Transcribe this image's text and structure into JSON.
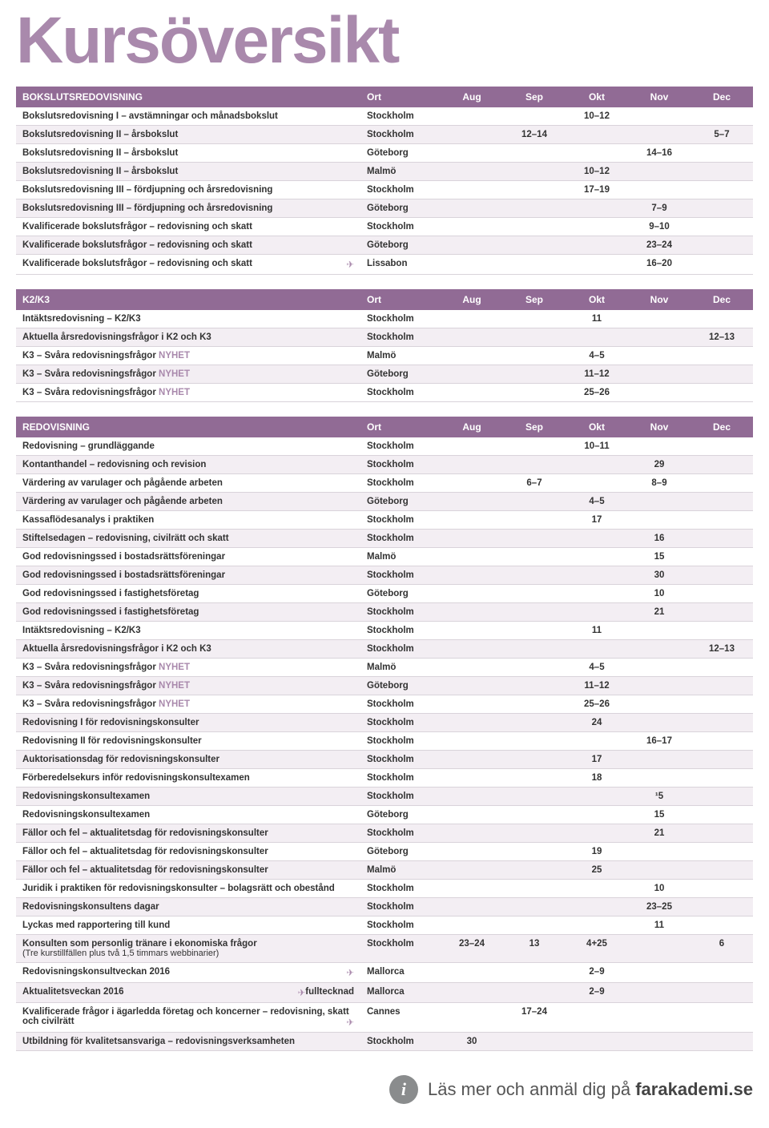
{
  "title": "Kursöversikt",
  "plane_glyph": "✈",
  "nyhet_label": "NYHET",
  "columns": [
    "Ort",
    "Aug",
    "Sep",
    "Okt",
    "Nov",
    "Dec"
  ],
  "sections": [
    {
      "header": "BOKSLUTSREDOVISNING",
      "rows": [
        {
          "name": "Bokslutsredovisning I – avstämningar och månadsbokslut",
          "ort": "Stockholm",
          "aug": "",
          "sep": "",
          "okt": "10–12",
          "nov": "",
          "dec": ""
        },
        {
          "name": "Bokslutsredovisning II – årsbokslut",
          "ort": "Stockholm",
          "aug": "",
          "sep": "12–14",
          "okt": "",
          "nov": "",
          "dec": "5–7"
        },
        {
          "name": "Bokslutsredovisning II – årsbokslut",
          "ort": "Göteborg",
          "aug": "",
          "sep": "",
          "okt": "",
          "nov": "14–16",
          "dec": ""
        },
        {
          "name": "Bokslutsredovisning II – årsbokslut",
          "ort": "Malmö",
          "aug": "",
          "sep": "",
          "okt": "10–12",
          "nov": "",
          "dec": ""
        },
        {
          "name": "Bokslutsredovisning III – fördjupning och årsredovisning",
          "ort": "Stockholm",
          "aug": "",
          "sep": "",
          "okt": "17–19",
          "nov": "",
          "dec": ""
        },
        {
          "name": "Bokslutsredovisning III – fördjupning och årsredovisning",
          "ort": "Göteborg",
          "aug": "",
          "sep": "",
          "okt": "",
          "nov": "7–9",
          "dec": ""
        },
        {
          "name": "Kvalificerade bokslutsfrågor – redovisning och skatt",
          "ort": "Stockholm",
          "aug": "",
          "sep": "",
          "okt": "",
          "nov": "9–10",
          "dec": ""
        },
        {
          "name": "Kvalificerade bokslutsfrågor – redovisning och skatt",
          "ort": "Göteborg",
          "aug": "",
          "sep": "",
          "okt": "",
          "nov": "23–24",
          "dec": ""
        },
        {
          "name": "Kvalificerade bokslutsfrågor – redovisning och skatt",
          "plane": true,
          "ort": "Lissabon",
          "aug": "",
          "sep": "",
          "okt": "",
          "nov": "16–20",
          "dec": ""
        }
      ]
    },
    {
      "header": "K2/K3",
      "rows": [
        {
          "name": "Intäktsredovisning – K2/K3",
          "ort": "Stockholm",
          "aug": "",
          "sep": "",
          "okt": "11",
          "nov": "",
          "dec": ""
        },
        {
          "name": "Aktuella årsredovisningsfrågor i K2 och K3",
          "ort": "Stockholm",
          "aug": "",
          "sep": "",
          "okt": "",
          "nov": "",
          "dec": "12–13"
        },
        {
          "name": "K3 – Svåra redovisningsfrågor",
          "nyhet": true,
          "ort": "Malmö",
          "aug": "",
          "sep": "",
          "okt": "4–5",
          "nov": "",
          "dec": ""
        },
        {
          "name": "K3 – Svåra redovisningsfrågor",
          "nyhet": true,
          "ort": "Göteborg",
          "aug": "",
          "sep": "",
          "okt": "11–12",
          "nov": "",
          "dec": ""
        },
        {
          "name": "K3 – Svåra redovisningsfrågor",
          "nyhet": true,
          "ort": "Stockholm",
          "aug": "",
          "sep": "",
          "okt": "25–26",
          "nov": "",
          "dec": ""
        }
      ]
    },
    {
      "header": "REDOVISNING",
      "rows": [
        {
          "name": "Redovisning – grundläggande",
          "ort": "Stockholm",
          "aug": "",
          "sep": "",
          "okt": "10–11",
          "nov": "",
          "dec": ""
        },
        {
          "name": "Kontanthandel – redovisning och revision",
          "ort": "Stockholm",
          "aug": "",
          "sep": "",
          "okt": "",
          "nov": "29",
          "dec": ""
        },
        {
          "name": "Värdering av varulager och pågående arbeten",
          "ort": "Stockholm",
          "aug": "",
          "sep": "6–7",
          "okt": "",
          "nov": "8–9",
          "dec": ""
        },
        {
          "name": "Värdering av varulager och pågående arbeten",
          "ort": "Göteborg",
          "aug": "",
          "sep": "",
          "okt": "4–5",
          "nov": "",
          "dec": ""
        },
        {
          "name": "Kassaflödesanalys i praktiken",
          "ort": "Stockholm",
          "aug": "",
          "sep": "",
          "okt": "17",
          "nov": "",
          "dec": ""
        },
        {
          "name": "Stiftelsedagen – redovisning, civilrätt och skatt",
          "ort": "Stockholm",
          "aug": "",
          "sep": "",
          "okt": "",
          "nov": "16",
          "dec": ""
        },
        {
          "name": "God redovisningssed i bostadsrättsföreningar",
          "ort": "Malmö",
          "aug": "",
          "sep": "",
          "okt": "",
          "nov": "15",
          "dec": ""
        },
        {
          "name": "God redovisningssed i bostadsrättsföreningar",
          "ort": "Stockholm",
          "aug": "",
          "sep": "",
          "okt": "",
          "nov": "30",
          "dec": ""
        },
        {
          "name": "God redovisningssed i fastighetsföretag",
          "ort": "Göteborg",
          "aug": "",
          "sep": "",
          "okt": "",
          "nov": "10",
          "dec": ""
        },
        {
          "name": "God redovisningssed i fastighetsföretag",
          "ort": "Stockholm",
          "aug": "",
          "sep": "",
          "okt": "",
          "nov": "21",
          "dec": ""
        },
        {
          "name": "Intäktsredovisning – K2/K3",
          "ort": "Stockholm",
          "aug": "",
          "sep": "",
          "okt": "11",
          "nov": "",
          "dec": ""
        },
        {
          "name": "Aktuella årsredovisningsfrågor i K2 och K3",
          "ort": "Stockholm",
          "aug": "",
          "sep": "",
          "okt": "",
          "nov": "",
          "dec": "12–13"
        },
        {
          "name": "K3 – Svåra redovisningsfrågor",
          "nyhet": true,
          "ort": "Malmö",
          "aug": "",
          "sep": "",
          "okt": "4–5",
          "nov": "",
          "dec": ""
        },
        {
          "name": "K3 – Svåra redovisningsfrågor",
          "nyhet": true,
          "ort": "Göteborg",
          "aug": "",
          "sep": "",
          "okt": "11–12",
          "nov": "",
          "dec": ""
        },
        {
          "name": "K3 – Svåra redovisningsfrågor",
          "nyhet": true,
          "ort": "Stockholm",
          "aug": "",
          "sep": "",
          "okt": "25–26",
          "nov": "",
          "dec": ""
        },
        {
          "name": "Redovisning I för redovisningskonsulter",
          "ort": "Stockholm",
          "aug": "",
          "sep": "",
          "okt": "24",
          "nov": "",
          "dec": ""
        },
        {
          "name": "Redovisning II för redovisningskonsulter",
          "ort": "Stockholm",
          "aug": "",
          "sep": "",
          "okt": "",
          "nov": "16–17",
          "dec": ""
        },
        {
          "name": "Auktorisationsdag för redovisningskonsulter",
          "ort": "Stockholm",
          "aug": "",
          "sep": "",
          "okt": "17",
          "nov": "",
          "dec": ""
        },
        {
          "name": "Förberedelsekurs inför redovisningskonsultexamen",
          "ort": "Stockholm",
          "aug": "",
          "sep": "",
          "okt": "18",
          "nov": "",
          "dec": ""
        },
        {
          "name": "Redovisningskonsultexamen",
          "ort": "Stockholm",
          "aug": "",
          "sep": "",
          "okt": "",
          "nov": "¹5",
          "dec": ""
        },
        {
          "name": "Redovisningskonsultexamen",
          "ort": "Göteborg",
          "aug": "",
          "sep": "",
          "okt": "",
          "nov": "15",
          "dec": ""
        },
        {
          "name": "Fällor och fel – aktualitetsdag för redovisningskonsulter",
          "ort": "Stockholm",
          "aug": "",
          "sep": "",
          "okt": "",
          "nov": "21",
          "dec": ""
        },
        {
          "name": "Fällor och fel – aktualitetsdag för redovisningskonsulter",
          "ort": "Göteborg",
          "aug": "",
          "sep": "",
          "okt": "19",
          "nov": "",
          "dec": ""
        },
        {
          "name": "Fällor och fel – aktualitetsdag för redovisningskonsulter",
          "ort": "Malmö",
          "aug": "",
          "sep": "",
          "okt": "25",
          "nov": "",
          "dec": ""
        },
        {
          "name": "Juridik i praktiken för redovisningskonsulter – bolagsrätt och obestånd",
          "ort": "Stockholm",
          "aug": "",
          "sep": "",
          "okt": "",
          "nov": "10",
          "dec": ""
        },
        {
          "name": "Redovisningskonsultens dagar",
          "ort": "Stockholm",
          "aug": "",
          "sep": "",
          "okt": "",
          "nov": "23–25",
          "dec": ""
        },
        {
          "name": "Lyckas med rapportering till kund",
          "ort": "Stockholm",
          "aug": "",
          "sep": "",
          "okt": "",
          "nov": "11",
          "dec": ""
        },
        {
          "name": "Konsulten som personlig tränare i ekonomiska frågor",
          "subnote": "(Tre kurstillfällen plus två 1,5 timmars webbinarier)",
          "ort": "Stockholm",
          "aug": "23–24",
          "sep": "13",
          "okt": "4+25",
          "nov": "",
          "dec": "6"
        },
        {
          "name": "Redovisningskonsultveckan 2016",
          "plane": true,
          "ort": "Mallorca",
          "aug": "",
          "sep": "",
          "okt": "2–9",
          "nov": "",
          "dec": ""
        },
        {
          "name": "Aktualitetsveckan 2016",
          "right_text": "fulltecknad",
          "plane": true,
          "ort": "Mallorca",
          "aug": "",
          "sep": "",
          "okt": "2–9",
          "nov": "",
          "dec": ""
        },
        {
          "name": "Kvalificerade frågor i ägarledda företag och koncerner – redovisning, skatt och civilrätt",
          "plane": true,
          "ort": "Cannes",
          "aug": "",
          "sep": "17–24",
          "okt": "",
          "nov": "",
          "dec": ""
        },
        {
          "name": "Utbildning för kvalitetsansvariga – redovisningsverksamheten",
          "ort": "Stockholm",
          "aug": "30",
          "sep": "",
          "okt": "",
          "nov": "",
          "dec": ""
        }
      ]
    }
  ],
  "footer": {
    "prefix": "Läs mer och anmäl dig på ",
    "link": "farakademi.se"
  }
}
